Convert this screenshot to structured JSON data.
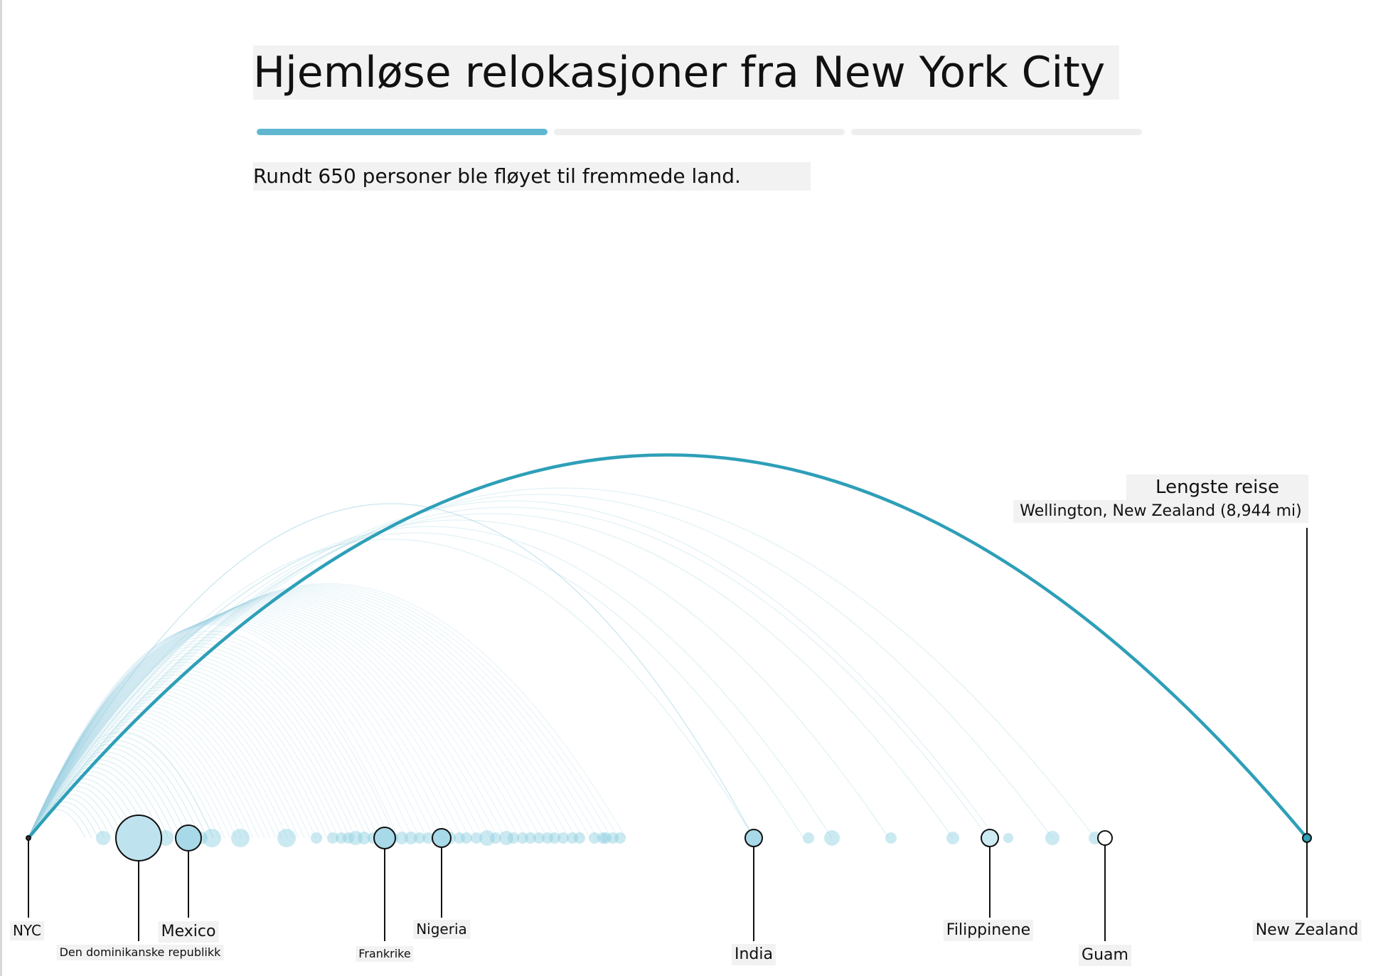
{
  "title": "Hjemløse relokasjoner fra New York City",
  "progress": {
    "steps": 3,
    "active_step": 1
  },
  "subtitle": "Rundt 650 personer ble fløyet til fremmede land.",
  "annotation": {
    "heading": "Lengste reise",
    "detail": "Wellington, New Zealand (8,944 mi)"
  },
  "colors": {
    "accent": "#2e9fb8",
    "arc_light": "#9fd3e2",
    "dot": "#8ccfe1",
    "leader": "#111111",
    "label_bg": "#f2f2f2"
  },
  "chart_data": {
    "type": "arc",
    "origin": "NYC",
    "longest_trip": {
      "destination": "Wellington, New Zealand",
      "miles": 8944
    },
    "labels": [
      "NYC",
      "Den dominikanske republikk",
      "Mexico",
      "Frankrike",
      "Nigeria",
      "India",
      "Filippinene",
      "Guam",
      "New Zealand"
    ]
  }
}
